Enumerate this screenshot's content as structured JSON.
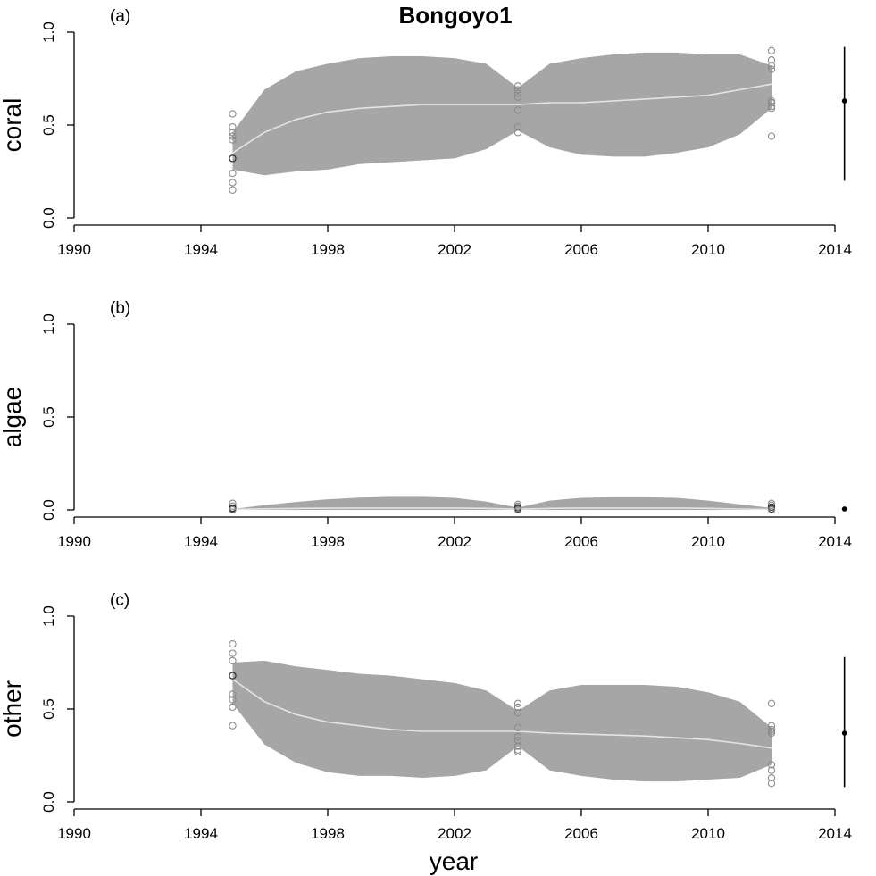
{
  "chart_data": {
    "title": "Bongoyo1",
    "xlabel": "year",
    "xlim": [
      1990,
      2014
    ],
    "xticks": [
      1990,
      1994,
      1998,
      2002,
      2006,
      2010,
      2014
    ],
    "tick_labels_x": [
      "1990",
      "1994",
      "1998",
      "2002",
      "2006",
      "2010",
      "2014"
    ],
    "panels": [
      {
        "label": "(a)",
        "ylabel": "coral",
        "type": "area",
        "ylim": [
          0,
          1
        ],
        "yticks": [
          0.0,
          0.5,
          1.0
        ],
        "tick_labels_y": [
          "0.0",
          "0.5",
          "1.0"
        ],
        "years": [
          1995,
          1996,
          1997,
          1998,
          1999,
          2000,
          2001,
          2002,
          2003,
          2004,
          2005,
          2006,
          2007,
          2008,
          2009,
          2010,
          2011,
          2012
        ],
        "lower": [
          0.26,
          0.23,
          0.25,
          0.26,
          0.29,
          0.3,
          0.31,
          0.32,
          0.37,
          0.47,
          0.38,
          0.34,
          0.33,
          0.33,
          0.35,
          0.38,
          0.45,
          0.59
        ],
        "upper": [
          0.46,
          0.69,
          0.79,
          0.83,
          0.86,
          0.87,
          0.87,
          0.86,
          0.83,
          0.7,
          0.83,
          0.86,
          0.88,
          0.89,
          0.89,
          0.88,
          0.88,
          0.82
        ],
        "median": [
          0.35,
          0.46,
          0.53,
          0.57,
          0.59,
          0.6,
          0.61,
          0.61,
          0.61,
          0.61,
          0.62,
          0.62,
          0.63,
          0.64,
          0.65,
          0.66,
          0.69,
          0.72
        ],
        "observations": [
          {
            "year": 1995,
            "values": [
              0.56,
              0.49,
              0.46,
              0.44,
              0.42,
              0.32,
              0.32,
              0.24,
              0.19,
              0.15
            ]
          },
          {
            "year": 2004,
            "values": [
              0.71,
              0.69,
              0.67,
              0.65,
              0.58,
              0.49,
              0.46
            ]
          },
          {
            "year": 2012,
            "values": [
              0.9,
              0.85,
              0.82,
              0.8,
              0.63,
              0.62,
              0.6,
              0.59,
              0.44
            ]
          }
        ],
        "summary": {
          "x": 2014.3,
          "point": 0.63,
          "lower": 0.2,
          "upper": 0.92
        }
      },
      {
        "label": "(b)",
        "ylabel": "algae",
        "type": "area",
        "ylim": [
          0,
          1
        ],
        "yticks": [
          0.0,
          0.5,
          1.0
        ],
        "tick_labels_y": [
          "0.0",
          "0.5",
          "1.0"
        ],
        "years": [
          1995,
          1996,
          1997,
          1998,
          1999,
          2000,
          2001,
          2002,
          2003,
          2004,
          2005,
          2006,
          2007,
          2008,
          2009,
          2010,
          2011,
          2012
        ],
        "lower": [
          0.0,
          0.0,
          0.0,
          0.0,
          0.0,
          0.0,
          0.0,
          0.0,
          0.0,
          0.0,
          0.0,
          0.0,
          0.0,
          0.0,
          0.0,
          0.0,
          0.0,
          0.0
        ],
        "upper": [
          0.005,
          0.025,
          0.043,
          0.057,
          0.066,
          0.07,
          0.07,
          0.065,
          0.045,
          0.012,
          0.05,
          0.065,
          0.068,
          0.068,
          0.065,
          0.05,
          0.03,
          0.01
        ],
        "median": [
          0.003,
          0.006,
          0.008,
          0.009,
          0.01,
          0.01,
          0.01,
          0.01,
          0.008,
          0.004,
          0.008,
          0.01,
          0.01,
          0.01,
          0.01,
          0.008,
          0.005,
          0.003
        ],
        "observations": [
          {
            "year": 1995,
            "values": [
              0.035,
              0.02,
              0.01,
              0.005,
              0.0
            ]
          },
          {
            "year": 2004,
            "values": [
              0.03,
              0.02,
              0.012,
              0.005,
              0.0
            ]
          },
          {
            "year": 2012,
            "values": [
              0.035,
              0.025,
              0.015,
              0.005,
              0.0
            ]
          }
        ],
        "summary": {
          "x": 2014.3,
          "point": 0.005,
          "lower": 0.005,
          "upper": 0.005
        }
      },
      {
        "label": "(c)",
        "ylabel": "other",
        "type": "area",
        "ylim": [
          0,
          1
        ],
        "yticks": [
          0.0,
          0.5,
          1.0
        ],
        "tick_labels_y": [
          "0.0",
          "0.5",
          "1.0"
        ],
        "years": [
          1995,
          1996,
          1997,
          1998,
          1999,
          2000,
          2001,
          2002,
          2003,
          2004,
          2005,
          2006,
          2007,
          2008,
          2009,
          2010,
          2011,
          2012
        ],
        "lower": [
          0.53,
          0.31,
          0.21,
          0.16,
          0.14,
          0.14,
          0.13,
          0.14,
          0.17,
          0.3,
          0.17,
          0.14,
          0.12,
          0.11,
          0.11,
          0.12,
          0.13,
          0.2
        ],
        "upper": [
          0.75,
          0.76,
          0.73,
          0.71,
          0.69,
          0.68,
          0.66,
          0.64,
          0.6,
          0.49,
          0.6,
          0.63,
          0.63,
          0.63,
          0.62,
          0.59,
          0.54,
          0.4
        ],
        "median": [
          0.66,
          0.54,
          0.47,
          0.43,
          0.41,
          0.39,
          0.38,
          0.38,
          0.38,
          0.38,
          0.37,
          0.365,
          0.36,
          0.355,
          0.345,
          0.335,
          0.315,
          0.29
        ],
        "observations": [
          {
            "year": 1995,
            "values": [
              0.85,
              0.8,
              0.76,
              0.68,
              0.68,
              0.58,
              0.55,
              0.51,
              0.41
            ]
          },
          {
            "year": 2004,
            "values": [
              0.53,
              0.51,
              0.48,
              0.4,
              0.35,
              0.33,
              0.3,
              0.28,
              0.27
            ]
          },
          {
            "year": 2012,
            "values": [
              0.53,
              0.41,
              0.39,
              0.38,
              0.37,
              0.2,
              0.17,
              0.13,
              0.1
            ]
          }
        ],
        "summary": {
          "x": 2014.3,
          "point": 0.37,
          "lower": 0.08,
          "upper": 0.78
        }
      }
    ]
  },
  "colors": {
    "band": "#a6a6a6",
    "median": "#e4e4e4",
    "observation_light": "#8c8c8c",
    "observation_dark": "#333333",
    "axis": "#000000"
  }
}
